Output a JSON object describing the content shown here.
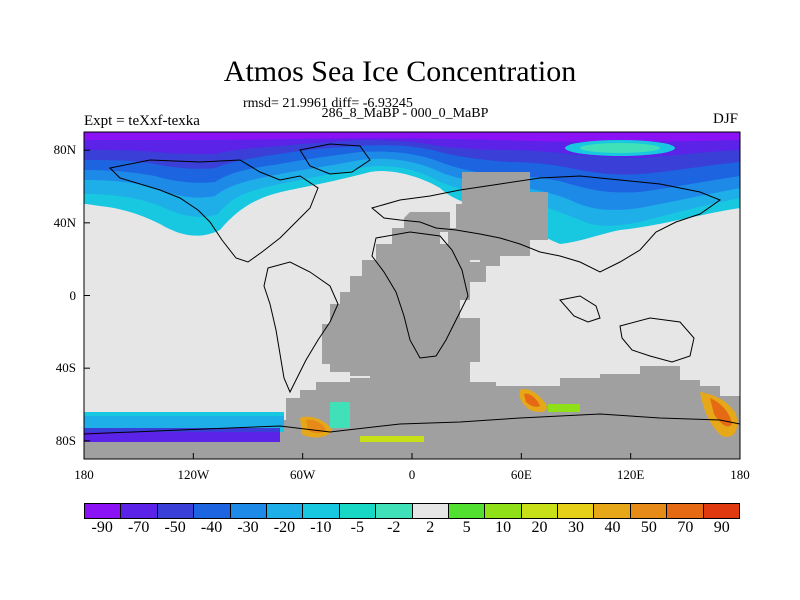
{
  "title": "Atmos Sea Ice Concentration",
  "stats": "rmsd= 21.9961 diff= -6.93245",
  "subtitle": "286_8_MaBP - 000_0_MaBP",
  "experiment_label": "Expt = teXxf-texka",
  "season": "DJF",
  "axes": {
    "lon_ticks": [
      "180",
      "120W",
      "60W",
      "0",
      "60E",
      "120E",
      "180"
    ],
    "lat_ticks": [
      "80N",
      "40N",
      "0",
      "40S",
      "80S"
    ]
  },
  "colorbar": {
    "labels": [
      "-90",
      "-70",
      "-50",
      "-40",
      "-30",
      "-20",
      "-10",
      "-5",
      "-2",
      "2",
      "5",
      "10",
      "20",
      "30",
      "40",
      "50",
      "70",
      "90"
    ],
    "colors": [
      "#8a12f5",
      "#5b22e8",
      "#3a3fd8",
      "#1c64e0",
      "#1e8ae8",
      "#1eaee8",
      "#18c8e0",
      "#16d8c4",
      "#40e0b8",
      "#e6e6e6",
      "#52e030",
      "#90e018",
      "#c8e018",
      "#e6d018",
      "#e6a818",
      "#e68a18",
      "#e66a14",
      "#e03a10"
    ]
  },
  "map_colors": {
    "missing": "#a0a0a0",
    "zero": "#e6e6e6",
    "coastline": "#000000"
  }
}
